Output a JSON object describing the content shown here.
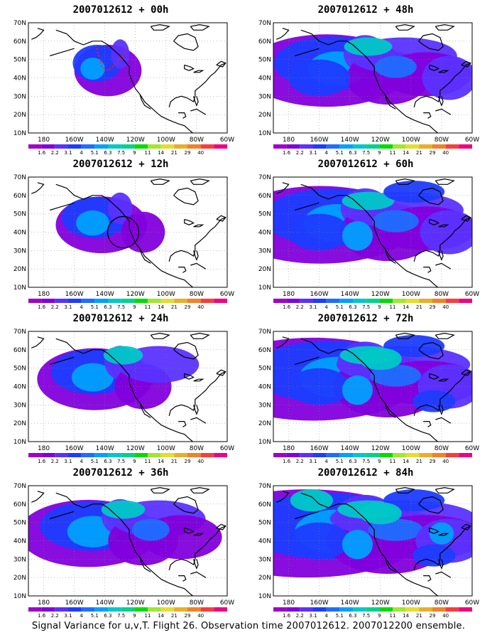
{
  "panels": [
    {
      "title": "2007012612 + 00h",
      "lead": 0
    },
    {
      "title": "2007012612 + 48h",
      "lead": 48
    },
    {
      "title": "2007012612 + 12h",
      "lead": 12
    },
    {
      "title": "2007012612 + 60h",
      "lead": 60
    },
    {
      "title": "2007012612 + 24h",
      "lead": 24
    },
    {
      "title": "2007012612 + 72h",
      "lead": 72
    },
    {
      "title": "2007012612 + 36h",
      "lead": 36
    },
    {
      "title": "2007012612 + 84h",
      "lead": 84
    }
  ],
  "lat_labels": [
    "70N",
    "60N",
    "50N",
    "40N",
    "30N",
    "20N",
    "10N"
  ],
  "lon_labels": [
    "180",
    "160W",
    "140W",
    "120W",
    "100W",
    "80W",
    "60W"
  ],
  "colorbar": {
    "labels": [
      "1.6",
      "2.2",
      "3.1",
      "4",
      "5.1",
      "6.3",
      "7.5",
      "9",
      "11",
      "14",
      "21",
      "29",
      "40"
    ],
    "colors": [
      "#a000c8",
      "#8200dc",
      "#5a32ff",
      "#1e3cff",
      "#1e6eff",
      "#00a0ff",
      "#00c8c8",
      "#00d28c",
      "#00dc00",
      "#a0e632",
      "#e6dc32",
      "#e6af2d",
      "#f08228",
      "#fa3c3c",
      "#f00082"
    ]
  },
  "footer": "Signal Variance for u,v,T. Flight 26. Observation time 2007012612. 2007012200 ensemble."
}
